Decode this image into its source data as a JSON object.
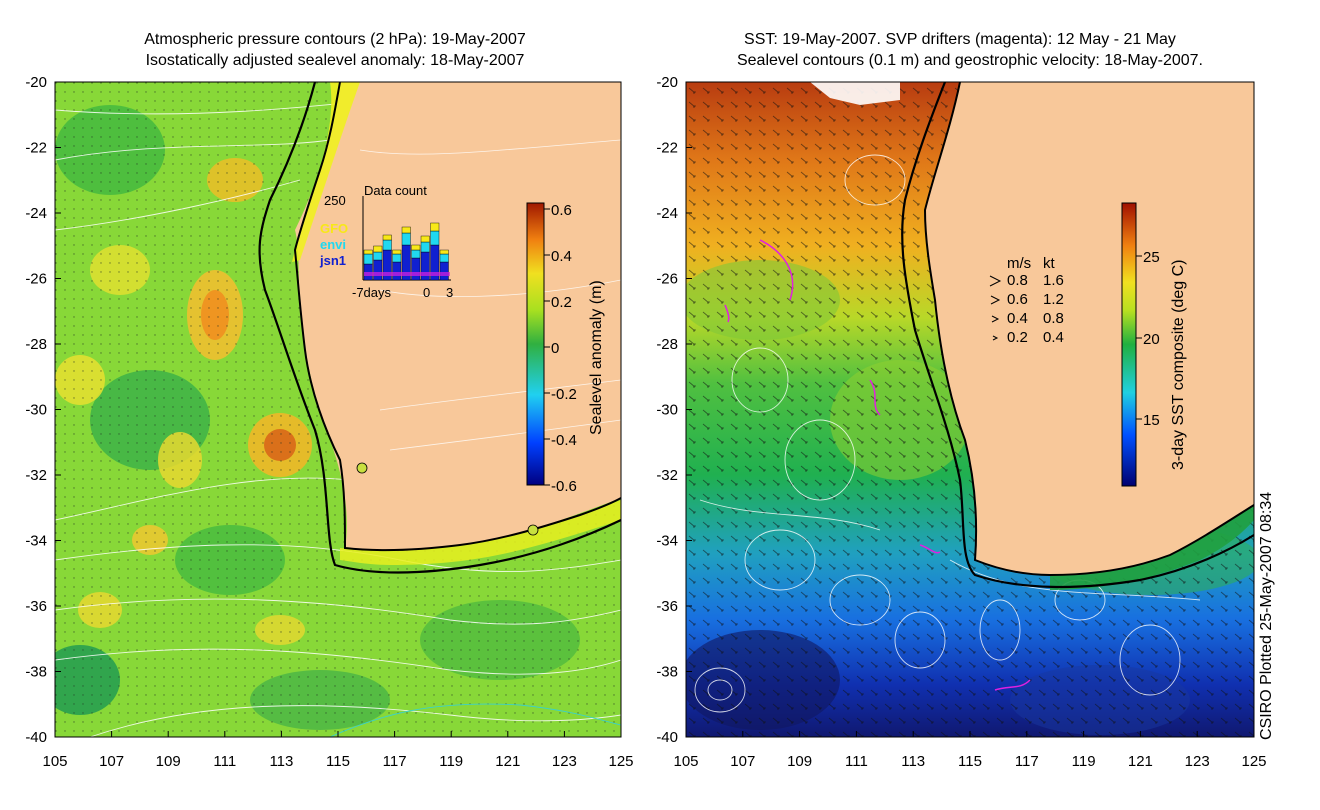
{
  "left_panel": {
    "title_line1": "Atmospheric pressure contours (2 hPa): 19-May-2007",
    "title_line2": "Isostatically adjusted sealevel anomaly: 18-May-2007",
    "colorbar_label": "Sealevel anomaly (m)",
    "colorbar_ticks": [
      "0.6",
      "0.4",
      "0.2",
      "0",
      "-0.2",
      "-0.4",
      "-0.6"
    ],
    "inset": {
      "title": "Data count",
      "ymax_label": "250",
      "legend": [
        {
          "name": "GFO",
          "color": "#f8e818"
        },
        {
          "name": "envi",
          "color": "#20d8f0"
        },
        {
          "name": "jsn1",
          "color": "#1020d0"
        }
      ],
      "x_labels": [
        "-7days",
        "0",
        "3"
      ]
    },
    "markers": [
      "circle-116E-31.8S",
      "circle-122E-33.7S"
    ]
  },
  "right_panel": {
    "title_line1": "SST: 19-May-2007. SVP drifters (magenta): 12 May - 21 May",
    "title_line2": "Sealevel contours (0.1 m) and geostrophic velocity: 18-May-2007.",
    "colorbar_label": "3-day SST composite (deg C)",
    "colorbar_ticks": [
      "25",
      "20",
      "15"
    ],
    "speed_legend": {
      "header_ms": "m/s",
      "header_kt": "kt",
      "rows": [
        {
          "ms": "0.8",
          "kt": "1.6"
        },
        {
          "ms": "0.6",
          "kt": "1.2"
        },
        {
          "ms": "0.4",
          "kt": "0.8"
        },
        {
          "ms": "0.2",
          "kt": "0.4"
        }
      ]
    }
  },
  "axes": {
    "y_labels": [
      "-20",
      "-22",
      "-24",
      "-26",
      "-28",
      "-30",
      "-32",
      "-34",
      "-36",
      "-38",
      "-40"
    ],
    "x_labels": [
      "105",
      "107",
      "109",
      "111",
      "113",
      "115",
      "117",
      "119",
      "121",
      "123",
      "125"
    ]
  },
  "footer_vertical": "CSIRO Plotted 25-May-2007 08:34",
  "colors": {
    "land": "#f8c89a",
    "coastline": "#000000",
    "contour": "#ffffff"
  }
}
